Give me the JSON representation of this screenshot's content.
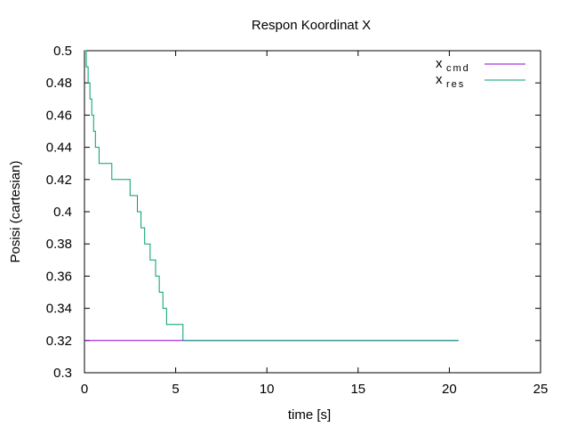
{
  "chart_data": {
    "type": "line",
    "title": "Respon Koordinat X",
    "xlabel": "time [s]",
    "ylabel": "Posisi (cartesian)",
    "xlim": [
      0,
      25
    ],
    "ylim": [
      0.3,
      0.5
    ],
    "x_ticks": [
      0,
      5,
      10,
      15,
      20,
      25
    ],
    "x_tick_labels": [
      "0",
      "5",
      "10",
      "15",
      "20",
      "25"
    ],
    "y_ticks": [
      0.3,
      0.32,
      0.34,
      0.36,
      0.38,
      0.4,
      0.42,
      0.44,
      0.46,
      0.48,
      0.5
    ],
    "y_tick_labels": [
      "0.3",
      "0.32",
      "0.34",
      "0.36",
      "0.38",
      "0.4",
      "0.42",
      "0.44",
      "0.46",
      "0.48",
      "0.5"
    ],
    "grid": false,
    "legend_position": "top-right",
    "series": [
      {
        "name_main": "x",
        "name_sub": "cmd",
        "color": "#9400d3",
        "step": false,
        "x": [
          0,
          20.5
        ],
        "y": [
          0.32,
          0.32
        ]
      },
      {
        "name_main": "x",
        "name_sub": "res",
        "color": "#009e73",
        "step": true,
        "x": [
          0.0,
          0.1,
          0.2,
          0.3,
          0.4,
          0.5,
          0.6,
          0.8,
          1.0,
          1.5,
          2.5,
          2.9,
          3.1,
          3.3,
          3.6,
          3.9,
          4.1,
          4.3,
          4.5,
          4.8,
          5.4,
          20.5
        ],
        "y": [
          0.5,
          0.49,
          0.48,
          0.47,
          0.46,
          0.45,
          0.44,
          0.43,
          0.43,
          0.42,
          0.41,
          0.4,
          0.39,
          0.38,
          0.37,
          0.36,
          0.35,
          0.34,
          0.33,
          0.33,
          0.32,
          0.32
        ]
      }
    ]
  }
}
